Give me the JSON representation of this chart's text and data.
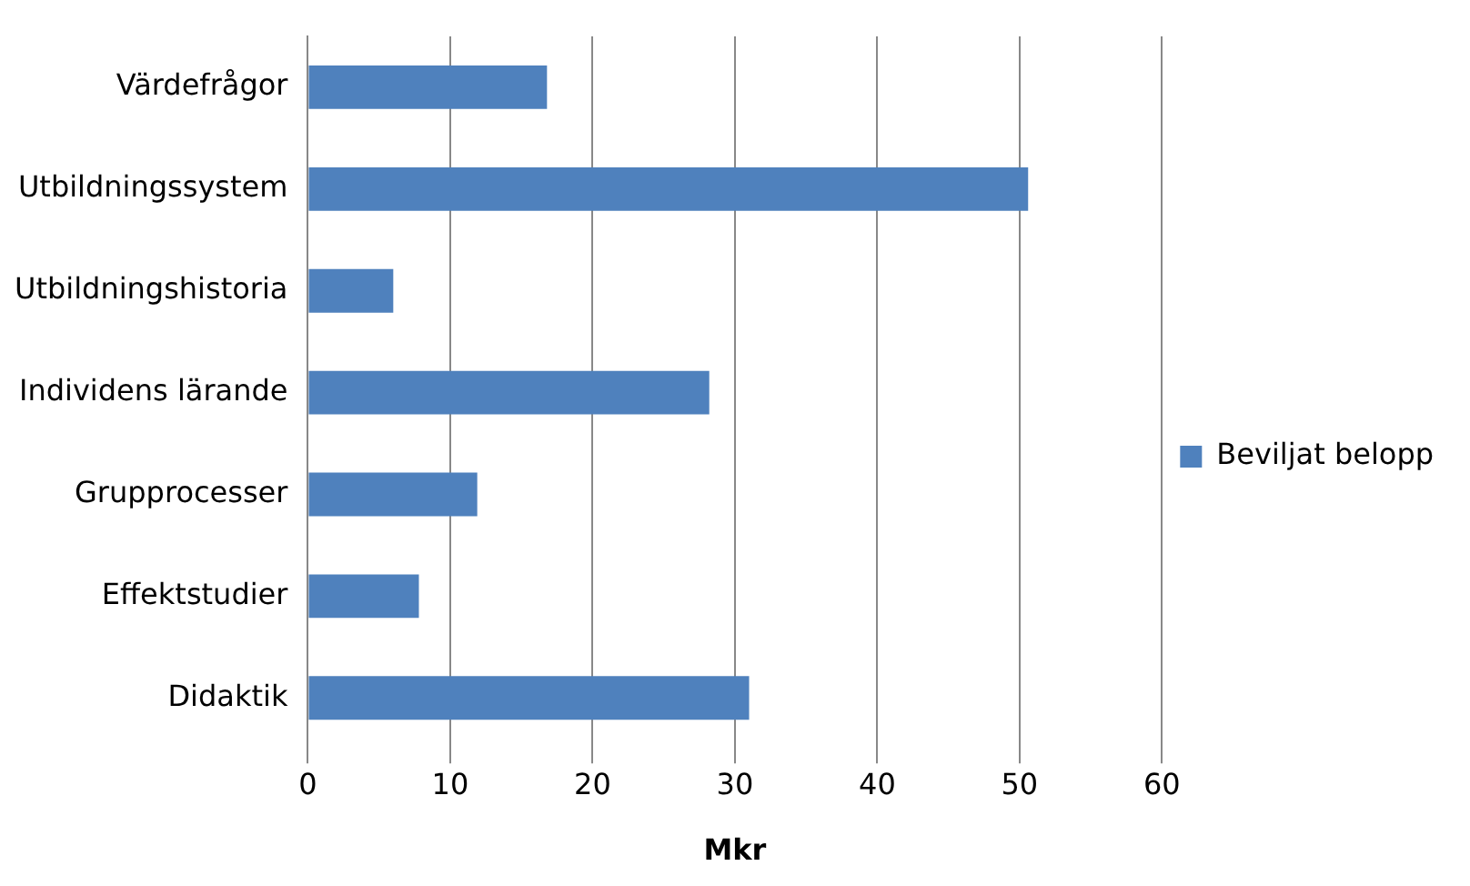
{
  "chart_data": {
    "type": "bar",
    "orientation": "horizontal",
    "xlabel": "Mkr",
    "categories": [
      "Värdefrågor",
      "Utbildningssystem",
      "Utbildningshistoria",
      "Individens lärande",
      "Grupprocesser",
      "Effektstudier",
      "Didaktik"
    ],
    "series": [
      {
        "name": "Beviljat belopp",
        "color": "#4f81bd",
        "values": [
          16.8,
          50.6,
          6.0,
          28.2,
          11.9,
          7.8,
          31.0
        ]
      }
    ],
    "xlim": [
      0,
      60
    ],
    "xticks": [
      0,
      10,
      20,
      30,
      40,
      50,
      60
    ],
    "grid": "x",
    "legend": "right"
  }
}
